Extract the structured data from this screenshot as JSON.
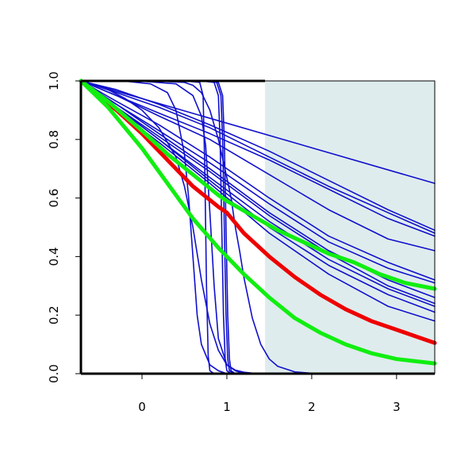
{
  "chart_data": {
    "type": "line",
    "title": "",
    "xlabel": "",
    "ylabel": "",
    "xlim": [
      -0.72,
      3.45
    ],
    "ylim": [
      0,
      1
    ],
    "x_ticks": [
      0,
      1,
      2,
      3
    ],
    "x_tick_labels": [
      "0",
      "1",
      "2",
      "3"
    ],
    "y_ticks": [
      0,
      0.2,
      0.4,
      0.6,
      0.8,
      1
    ],
    "y_tick_labels": [
      "0.0",
      "0.2",
      "0.4",
      "0.6",
      "0.8",
      "1.0"
    ],
    "grid": false,
    "legend": "none",
    "shaded_region": {
      "x": [
        1.45,
        3.45
      ],
      "y": [
        0,
        1
      ],
      "color": "#dfeced"
    },
    "colors": {
      "blue": "#1010cc",
      "red": "#ee0000",
      "green": "#11ee11",
      "axis": "#000000"
    },
    "series": [
      {
        "color": "#1010cc",
        "line": "thin",
        "x": [
          -0.72,
          3.45
        ],
        "y": [
          1.0,
          0.65
        ]
      },
      {
        "color": "#1010cc",
        "line": "thin",
        "x": [
          -0.72,
          -0.3,
          0.2,
          0.8,
          1.5,
          2.2,
          2.9,
          3.45
        ],
        "y": [
          1.0,
          0.97,
          0.92,
          0.85,
          0.76,
          0.66,
          0.56,
          0.49
        ]
      },
      {
        "color": "#1010cc",
        "line": "thin",
        "x": [
          -0.72,
          -0.3,
          0.2,
          0.8,
          1.5,
          2.2,
          2.9,
          3.45
        ],
        "y": [
          1.0,
          0.96,
          0.91,
          0.84,
          0.74,
          0.64,
          0.55,
          0.48
        ]
      },
      {
        "color": "#1010cc",
        "line": "thin",
        "x": [
          -0.72,
          -0.3,
          0.2,
          0.8,
          1.5,
          2.2,
          2.9,
          3.45
        ],
        "y": [
          1.0,
          0.95,
          0.89,
          0.82,
          0.73,
          0.63,
          0.53,
          0.47
        ]
      },
      {
        "color": "#1010cc",
        "line": "thin",
        "x": [
          -0.72,
          -0.3,
          0.2,
          0.8,
          1.5,
          2.2,
          2.9,
          3.45
        ],
        "y": [
          1.0,
          0.95,
          0.88,
          0.8,
          0.68,
          0.56,
          0.46,
          0.42
        ]
      },
      {
        "color": "#1010cc",
        "line": "thin",
        "x": [
          -0.72,
          -0.3,
          0.2,
          0.8,
          1.5,
          2.2,
          2.9,
          3.45
        ],
        "y": [
          1.0,
          0.93,
          0.85,
          0.74,
          0.6,
          0.47,
          0.38,
          0.32
        ]
      },
      {
        "color": "#1010cc",
        "line": "thin",
        "x": [
          -0.72,
          -0.3,
          0.2,
          0.8,
          1.5,
          2.2,
          2.9,
          3.45
        ],
        "y": [
          1.0,
          0.92,
          0.83,
          0.72,
          0.58,
          0.45,
          0.36,
          0.31
        ]
      },
      {
        "color": "#1010cc",
        "line": "thin",
        "x": [
          -0.72,
          -0.3,
          0.2,
          0.8,
          1.5,
          2.2,
          2.9,
          3.45
        ],
        "y": [
          1.0,
          0.92,
          0.82,
          0.7,
          0.55,
          0.42,
          0.32,
          0.26
        ]
      },
      {
        "color": "#1010cc",
        "line": "thin",
        "x": [
          -0.72,
          -0.3,
          0.2,
          0.8,
          1.5,
          2.2,
          2.9,
          3.45
        ],
        "y": [
          1.0,
          0.91,
          0.81,
          0.69,
          0.54,
          0.41,
          0.3,
          0.24
        ]
      },
      {
        "color": "#1010cc",
        "line": "thin",
        "x": [
          -0.72,
          -0.3,
          0.2,
          0.8,
          1.5,
          2.2,
          2.9,
          3.45
        ],
        "y": [
          1.0,
          0.91,
          0.8,
          0.67,
          0.52,
          0.39,
          0.29,
          0.23
        ]
      },
      {
        "color": "#1010cc",
        "line": "thin",
        "x": [
          -0.72,
          -0.3,
          0.2,
          0.8,
          1.5,
          2.2,
          2.9,
          3.45
        ],
        "y": [
          1.0,
          0.91,
          0.8,
          0.66,
          0.5,
          0.37,
          0.27,
          0.21
        ]
      },
      {
        "color": "#1010cc",
        "line": "thin",
        "x": [
          -0.72,
          -0.3,
          0.2,
          0.8,
          1.5,
          2.2,
          2.9,
          3.45
        ],
        "y": [
          1.0,
          0.9,
          0.79,
          0.65,
          0.48,
          0.34,
          0.23,
          0.18
        ]
      },
      {
        "color": "#1010cc",
        "line": "thin",
        "x": [
          -0.72,
          -0.4,
          -0.2,
          0.0,
          0.2,
          0.4,
          0.5,
          0.6,
          0.7,
          0.8,
          0.9,
          1.0,
          1.1,
          1.2,
          1.3,
          1.5,
          1.8,
          2.1
        ],
        "y": [
          1.0,
          0.97,
          0.94,
          0.9,
          0.84,
          0.74,
          0.64,
          0.5,
          0.32,
          0.17,
          0.08,
          0.03,
          0.012,
          0.005,
          0.002,
          0.0,
          0.0,
          0.0
        ]
      },
      {
        "color": "#1010cc",
        "line": "thin",
        "x": [
          -0.72,
          -0.2,
          0.1,
          0.3,
          0.4,
          0.5,
          0.55,
          0.6,
          0.65,
          0.7,
          0.8,
          0.9,
          1.0
        ],
        "y": [
          1.0,
          0.999,
          0.99,
          0.96,
          0.9,
          0.75,
          0.6,
          0.4,
          0.2,
          0.1,
          0.03,
          0.01,
          0.0
        ]
      },
      {
        "color": "#1010cc",
        "line": "thin",
        "x": [
          -0.72,
          0.0,
          0.4,
          0.6,
          0.7,
          0.75,
          0.8,
          0.85,
          0.9,
          1.0,
          1.1,
          1.2
        ],
        "y": [
          1.0,
          0.999,
          0.99,
          0.95,
          0.88,
          0.78,
          0.55,
          0.3,
          0.12,
          0.03,
          0.01,
          0.0
        ]
      },
      {
        "color": "#1010cc",
        "line": "thin",
        "x": [
          -0.72,
          0.2,
          0.5,
          0.6,
          0.7,
          0.8,
          0.9,
          1.0,
          1.05,
          1.1,
          1.15,
          1.2,
          1.25,
          1.3,
          1.4,
          1.5,
          1.6,
          1.8,
          2.0,
          2.3
        ],
        "y": [
          1.0,
          0.999,
          0.995,
          0.985,
          0.96,
          0.9,
          0.8,
          0.67,
          0.6,
          0.5,
          0.42,
          0.33,
          0.26,
          0.19,
          0.1,
          0.05,
          0.025,
          0.006,
          0.0015,
          0.0
        ]
      },
      {
        "color": "#1010cc",
        "line": "thin",
        "x": [
          -0.72,
          0.5,
          0.68,
          0.72,
          0.74,
          0.76,
          0.78,
          0.8,
          0.85
        ],
        "y": [
          1.0,
          1.0,
          0.995,
          0.95,
          0.7,
          0.3,
          0.06,
          0.01,
          0.0
        ]
      },
      {
        "color": "#1010cc",
        "line": "thin",
        "x": [
          -0.72,
          0.7,
          0.85,
          0.9,
          0.92,
          0.94,
          0.96,
          0.98,
          1.0,
          1.05
        ],
        "y": [
          1.0,
          1.0,
          0.995,
          0.95,
          0.8,
          0.5,
          0.2,
          0.05,
          0.01,
          0.0
        ]
      },
      {
        "color": "#1010cc",
        "line": "thin",
        "x": [
          -0.72,
          0.7,
          0.88,
          0.93,
          0.95,
          0.97,
          0.99,
          1.01,
          1.03,
          1.08
        ],
        "y": [
          1.0,
          1.0,
          0.995,
          0.95,
          0.8,
          0.5,
          0.2,
          0.05,
          0.01,
          0.0
        ]
      },
      {
        "color": "#1010cc",
        "line": "thin",
        "x": [
          -0.72,
          0.75,
          0.9,
          0.95,
          0.97,
          0.99,
          1.01,
          1.03,
          1.05,
          1.1
        ],
        "y": [
          1.0,
          1.0,
          0.995,
          0.95,
          0.8,
          0.5,
          0.2,
          0.05,
          0.01,
          0.0
        ]
      },
      {
        "color": "#ee0000",
        "line": "thick",
        "x": [
          -0.55,
          -0.3,
          0.0,
          0.3,
          0.6,
          0.9,
          1.0,
          1.2,
          1.5,
          1.8,
          2.1,
          2.4,
          2.7,
          3.0,
          3.3,
          3.45
        ],
        "y": [
          0.96,
          0.9,
          0.82,
          0.73,
          0.64,
          0.57,
          0.55,
          0.48,
          0.4,
          0.33,
          0.27,
          0.22,
          0.18,
          0.15,
          0.12,
          0.105
        ]
      },
      {
        "color": "#11ee11",
        "line": "thick",
        "x": [
          -0.72,
          -0.4,
          0.0,
          0.3,
          0.6,
          0.9,
          1.0,
          1.3,
          1.6,
          1.9,
          2.2,
          2.5,
          2.8,
          3.1,
          3.45
        ],
        "y": [
          1.0,
          0.93,
          0.83,
          0.75,
          0.68,
          0.61,
          0.59,
          0.54,
          0.49,
          0.45,
          0.41,
          0.38,
          0.34,
          0.31,
          0.29
        ]
      },
      {
        "color": "#11ee11",
        "line": "thick",
        "x": [
          -0.72,
          -0.4,
          0.0,
          0.3,
          0.6,
          0.9,
          1.0,
          1.2,
          1.5,
          1.8,
          2.1,
          2.4,
          2.7,
          3.0,
          3.45
        ],
        "y": [
          1.0,
          0.91,
          0.77,
          0.65,
          0.53,
          0.43,
          0.4,
          0.34,
          0.26,
          0.19,
          0.14,
          0.1,
          0.07,
          0.05,
          0.035
        ]
      }
    ]
  }
}
